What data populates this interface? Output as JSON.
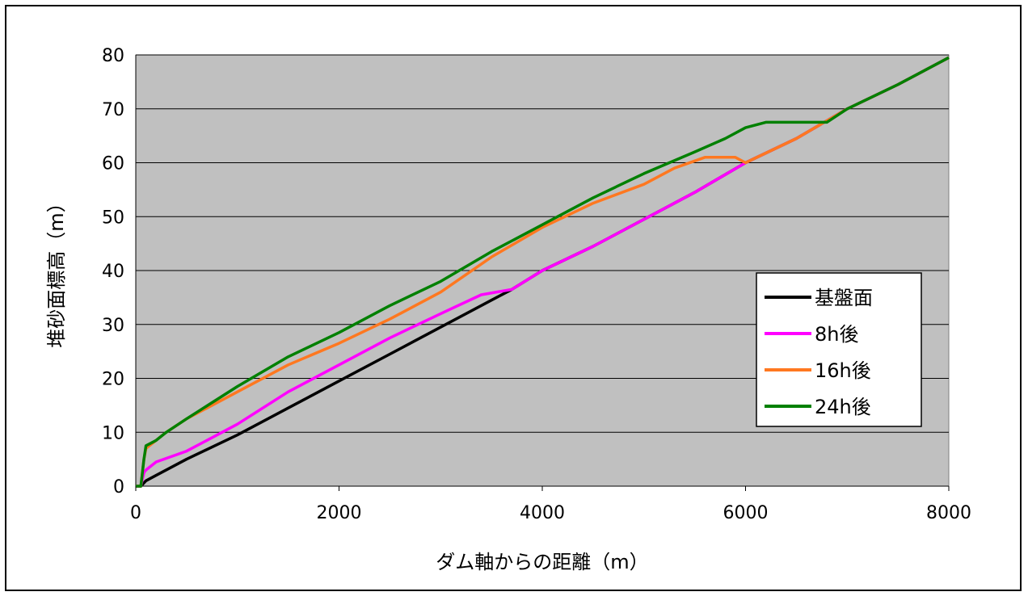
{
  "chart_data": {
    "type": "line",
    "title": "",
    "xlabel": "ダム軸からの距離（m）",
    "ylabel": "堆砂面標高（m）",
    "xlim": [
      0,
      8000
    ],
    "ylim": [
      0,
      80
    ],
    "xticks": [
      0,
      2000,
      4000,
      6000,
      8000
    ],
    "yticks": [
      0,
      10,
      20,
      30,
      40,
      50,
      60,
      70,
      80
    ],
    "grid": "horizontal",
    "plot_background": "#c0c0c0",
    "legend_position": "inside-right",
    "series": [
      {
        "name": "基盤面",
        "color": "#000000",
        "x": [
          0,
          50,
          100,
          200,
          500,
          1000,
          1500,
          2000,
          2500,
          3000,
          3500,
          3700,
          4000,
          4500,
          5000,
          5500,
          6000,
          6500,
          7000,
          7500,
          8000
        ],
        "y": [
          0,
          0,
          1,
          2,
          5,
          9.5,
          14.5,
          19.5,
          24.5,
          29.5,
          34.5,
          36.5,
          40,
          44.5,
          49.5,
          54.5,
          60,
          64.5,
          70,
          74.5,
          79.5
        ]
      },
      {
        "name": "8h後",
        "color": "#ff00ff",
        "x": [
          0,
          50,
          80,
          100,
          200,
          500,
          1000,
          1500,
          2000,
          2500,
          3000,
          3400,
          3700,
          4000,
          4500,
          5000,
          5500,
          6000,
          6500,
          7000,
          7500,
          8000
        ],
        "y": [
          0,
          0,
          2.5,
          3,
          4.5,
          6.5,
          11.5,
          17.5,
          22.5,
          27.5,
          32,
          35.5,
          36.5,
          40,
          44.5,
          49.5,
          54.5,
          60,
          64.5,
          70,
          74.5,
          79.5
        ]
      },
      {
        "name": "16h後",
        "color": "#ff7820",
        "x": [
          0,
          50,
          80,
          100,
          200,
          300,
          500,
          1000,
          1500,
          2000,
          2500,
          3000,
          3500,
          4000,
          4500,
          5000,
          5300,
          5600,
          5900,
          6000,
          6500,
          7000,
          7500,
          8000
        ],
        "y": [
          0,
          0,
          5,
          7,
          8.5,
          10,
          12.5,
          17.5,
          22.5,
          26.5,
          31,
          36,
          42.5,
          48,
          52.5,
          56,
          59,
          61,
          61,
          60,
          64.5,
          70,
          74.5,
          79.5
        ]
      },
      {
        "name": "24h後",
        "color": "#008000",
        "x": [
          0,
          50,
          80,
          100,
          200,
          300,
          500,
          1000,
          1500,
          2000,
          2500,
          3000,
          3500,
          4000,
          4500,
          5000,
          5500,
          5800,
          6000,
          6200,
          6800,
          7000,
          7500,
          8000
        ],
        "y": [
          0,
          0,
          5,
          7.5,
          8.5,
          10,
          12.5,
          18.5,
          24,
          28.5,
          33.5,
          38,
          43.5,
          48.5,
          53.5,
          58,
          62,
          64.5,
          66.5,
          67.5,
          67.5,
          70,
          74.5,
          79.5
        ]
      }
    ]
  }
}
